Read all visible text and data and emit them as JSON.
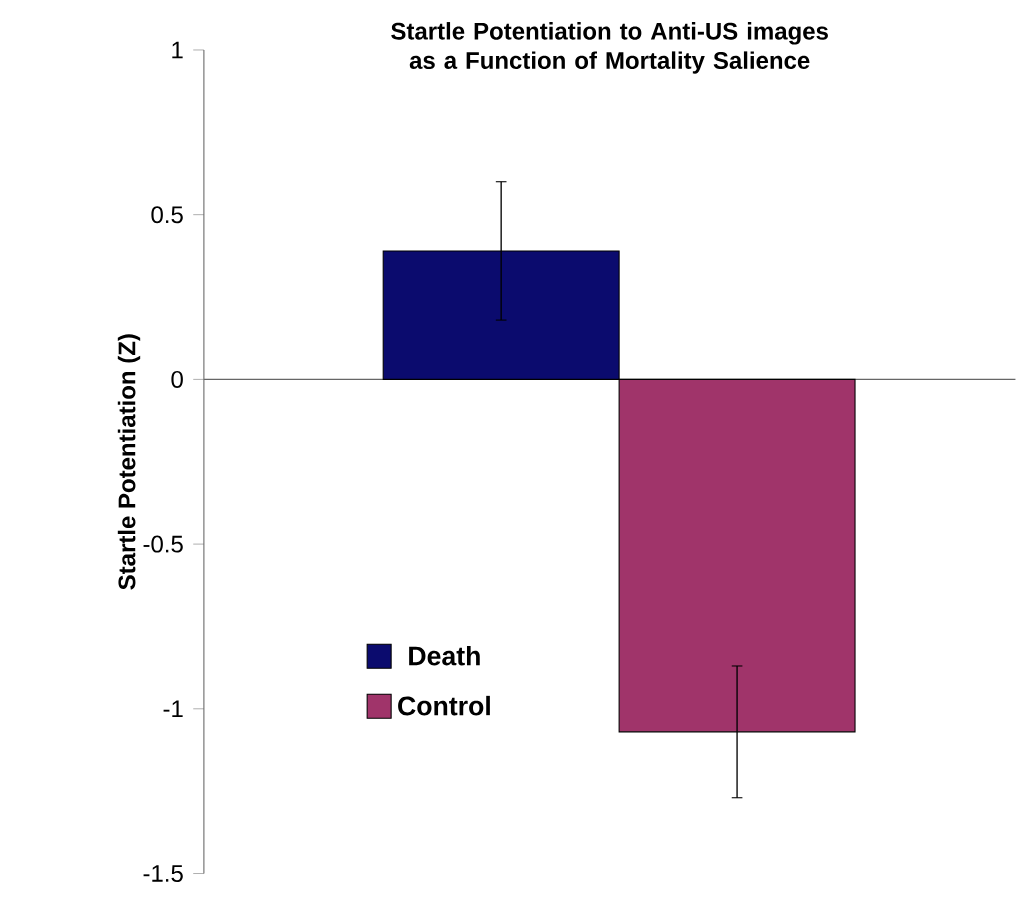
{
  "chart_data": {
    "type": "bar",
    "title": "Startle Potentiation to Anti-US images as a Function of Mortality Salience",
    "ylabel": "Startle Potentiation (Z)",
    "categories": [
      null,
      null
    ],
    "series": [
      {
        "name": "Death",
        "color": "#0b0b6e",
        "values": [
          0.39,
          null
        ],
        "errors": [
          0.21,
          null
        ]
      },
      {
        "name": "Control",
        "color": "#a0346a",
        "values": [
          null,
          -1.07
        ],
        "errors": [
          null,
          0.2
        ]
      }
    ],
    "ylim": [
      -1.5,
      1
    ],
    "yticks": [
      -1.5,
      -1,
      -0.5,
      0,
      0.5,
      1
    ],
    "legend": "bottom left"
  }
}
